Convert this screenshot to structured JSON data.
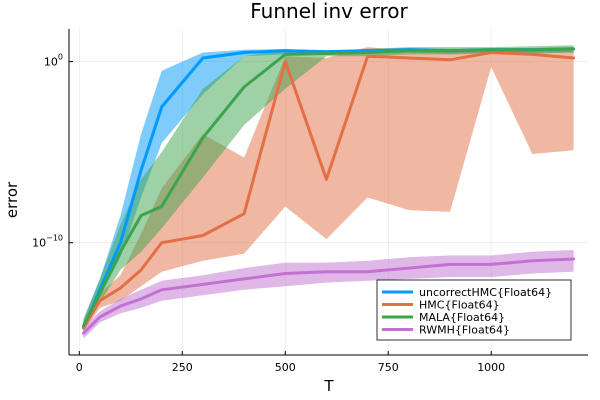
{
  "chart_data": {
    "type": "line",
    "title": "Funnel inv error",
    "xlabel": "T",
    "ylabel": "error",
    "x_ticks": [
      0,
      250,
      500,
      750,
      1000
    ],
    "x_tick_labels": [
      "0",
      "250",
      "500",
      "750",
      "1000"
    ],
    "xlim": [
      -25,
      1235
    ],
    "y_scale": "log10",
    "ylim_log10": [
      -16.2,
      1.8
    ],
    "y_ticks_log10": [
      0,
      -10
    ],
    "y_tick_labels": [
      {
        "base": "10",
        "exp": "0"
      },
      {
        "base": "10",
        "exp": "−10"
      }
    ],
    "grid": true,
    "legend_position": "bottom-right",
    "x": [
      10,
      50,
      100,
      150,
      200,
      300,
      400,
      500,
      600,
      700,
      800,
      900,
      1000,
      1100,
      1200
    ],
    "series": [
      {
        "name": "uncorrectHMC{Float64}",
        "color": "#009AFA",
        "log10_median": [
          -14.7,
          -12.6,
          -10.0,
          -6.0,
          -2.5,
          0.2,
          0.5,
          0.6,
          0.55,
          0.6,
          0.65,
          0.6,
          0.65,
          0.65,
          0.7
        ],
        "log10_lower": [
          -14.9,
          -13.0,
          -10.8,
          -7.5,
          -4.5,
          -1.8,
          0.3,
          0.4,
          0.45,
          0.45,
          0.5,
          0.45,
          0.5,
          0.5,
          0.5
        ],
        "log10_upper": [
          -14.3,
          -12.0,
          -8.5,
          -4.0,
          -0.5,
          0.5,
          0.65,
          0.7,
          0.6,
          0.7,
          0.75,
          0.7,
          0.75,
          0.75,
          0.8
        ]
      },
      {
        "name": "HMC{Float64}",
        "color": "#E26F46",
        "log10_median": [
          -14.7,
          -13.2,
          -12.5,
          -11.5,
          -10.0,
          -9.6,
          -8.4,
          0.0,
          -6.5,
          0.3,
          0.2,
          0.1,
          0.5,
          0.4,
          0.2
        ],
        "log10_lower": [
          -14.9,
          -13.6,
          -13.2,
          -12.4,
          -11.6,
          -11.0,
          -10.6,
          -8.0,
          -9.8,
          -7.5,
          -8.2,
          -8.3,
          -0.3,
          -5.1,
          -4.9
        ],
        "log10_upper": [
          -14.4,
          -12.8,
          -11.8,
          -9.5,
          -7.0,
          -4.0,
          -5.3,
          0.3,
          0.2,
          0.8,
          0.6,
          0.5,
          0.7,
          0.7,
          0.6
        ]
      },
      {
        "name": "MALA{Float64}",
        "color": "#3DA44D",
        "log10_median": [
          -14.6,
          -12.8,
          -10.5,
          -8.5,
          -8.0,
          -4.2,
          -1.4,
          0.4,
          0.45,
          0.5,
          0.6,
          0.6,
          0.65,
          0.65,
          0.7
        ],
        "log10_lower": [
          -14.8,
          -13.3,
          -11.5,
          -10.5,
          -9.2,
          -6.4,
          -3.5,
          -1.5,
          0.3,
          0.3,
          0.4,
          0.4,
          0.45,
          0.45,
          0.5
        ],
        "log10_upper": [
          -14.2,
          -12.0,
          -9.0,
          -6.5,
          -5.0,
          -1.5,
          0.3,
          0.65,
          0.6,
          0.7,
          0.8,
          0.8,
          0.8,
          0.85,
          0.9
        ]
      },
      {
        "name": "RWMH{Float64}",
        "color": "#C271D2",
        "log10_median": [
          -15.0,
          -14.1,
          -13.5,
          -13.1,
          -12.6,
          -12.3,
          -12.0,
          -11.7,
          -11.6,
          -11.6,
          -11.4,
          -11.2,
          -11.2,
          -11.0,
          -10.9
        ],
        "log10_lower": [
          -15.3,
          -14.4,
          -13.9,
          -13.6,
          -13.2,
          -12.9,
          -12.6,
          -12.4,
          -12.2,
          -12.1,
          -12.0,
          -11.9,
          -11.9,
          -11.7,
          -11.6
        ],
        "log10_upper": [
          -14.7,
          -13.8,
          -13.1,
          -12.6,
          -12.1,
          -11.8,
          -11.4,
          -11.1,
          -11.1,
          -11.0,
          -10.8,
          -10.7,
          -10.7,
          -10.5,
          -10.4
        ]
      }
    ]
  }
}
